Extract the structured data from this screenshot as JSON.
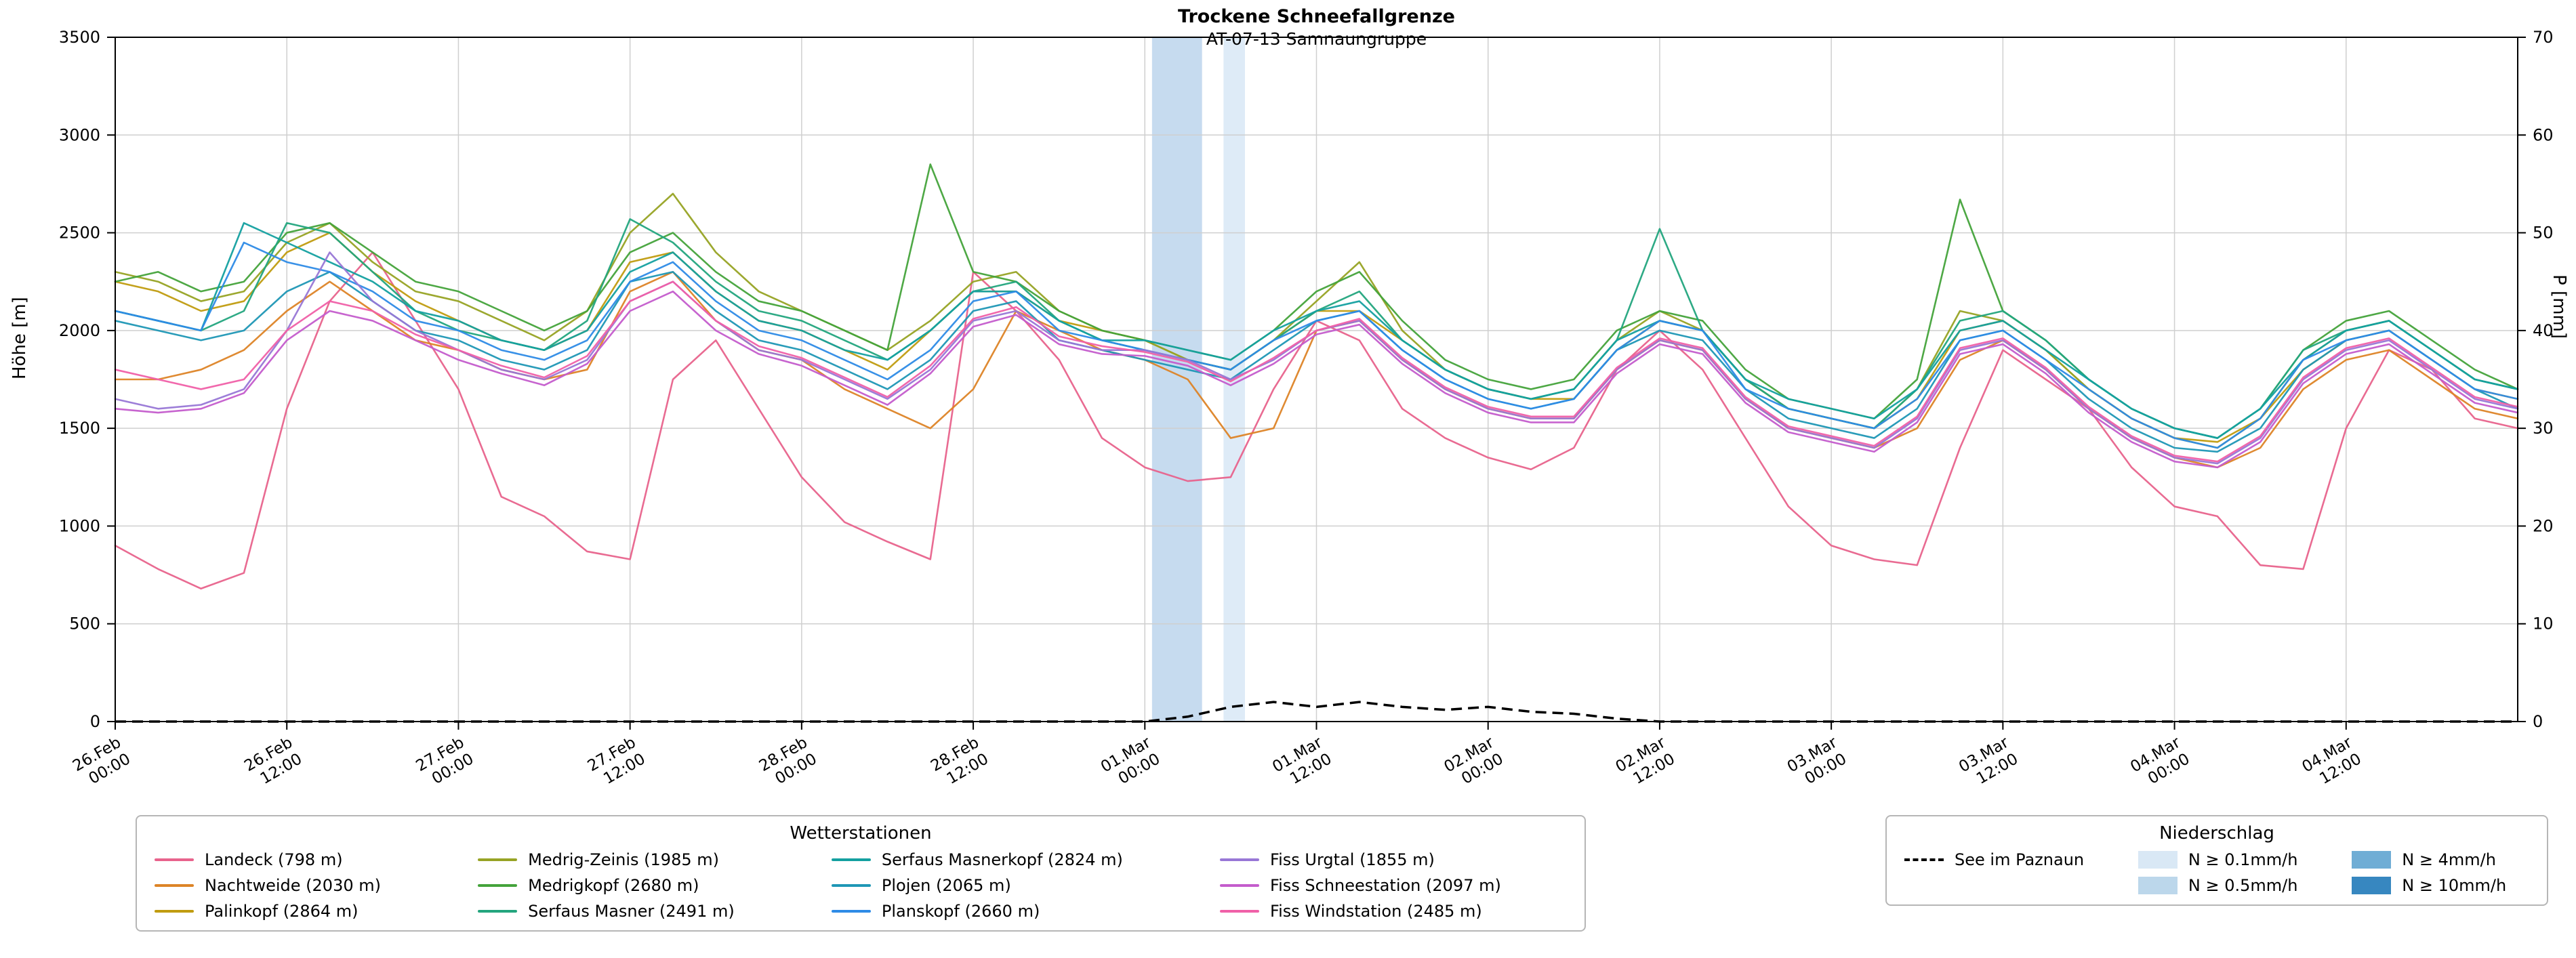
{
  "title": "Trockene Schneefallgrenze",
  "subtitle": "AT-07-13 Samnaungruppe",
  "axes": {
    "y_left_label": "Höhe [m]",
    "y_right_label": "P [mm]",
    "y_left_range": [
      0,
      3500
    ],
    "y_right_range": [
      0,
      70
    ],
    "y_left_ticks": [
      0,
      500,
      1000,
      1500,
      2000,
      2500,
      3000,
      3500
    ],
    "y_right_ticks": [
      0,
      10,
      20,
      30,
      40,
      50,
      60,
      70
    ],
    "x_range_hours": [
      0,
      168
    ],
    "x_ticks": [
      {
        "hour": 0,
        "line1": "26.Feb",
        "line2": "00:00"
      },
      {
        "hour": 12,
        "line1": "26.Feb",
        "line2": "12:00"
      },
      {
        "hour": 24,
        "line1": "27.Feb",
        "line2": "00:00"
      },
      {
        "hour": 36,
        "line1": "27.Feb",
        "line2": "12:00"
      },
      {
        "hour": 48,
        "line1": "28.Feb",
        "line2": "00:00"
      },
      {
        "hour": 60,
        "line1": "28.Feb",
        "line2": "12:00"
      },
      {
        "hour": 72,
        "line1": "01.Mar",
        "line2": "00:00"
      },
      {
        "hour": 84,
        "line1": "01.Mar",
        "line2": "12:00"
      },
      {
        "hour": 96,
        "line1": "02.Mar",
        "line2": "00:00"
      },
      {
        "hour": 108,
        "line1": "02.Mar",
        "line2": "12:00"
      },
      {
        "hour": 120,
        "line1": "03.Mar",
        "line2": "00:00"
      },
      {
        "hour": 132,
        "line1": "03.Mar",
        "line2": "12:00"
      },
      {
        "hour": 144,
        "line1": "04.Mar",
        "line2": "00:00"
      },
      {
        "hour": 156,
        "line1": "04.Mar",
        "line2": "12:00"
      }
    ]
  },
  "legend_stations": {
    "title": "Wetterstationen"
  },
  "legend_precip": {
    "title": "Niederschlag"
  },
  "chart_data": {
    "type": "line",
    "xlabel": "",
    "ylabel_left": "Höhe [m]",
    "ylabel_right": "P [mm]",
    "grid": true,
    "x_hours": [
      0,
      3,
      6,
      9,
      12,
      15,
      18,
      21,
      24,
      27,
      30,
      33,
      36,
      39,
      42,
      45,
      48,
      51,
      54,
      57,
      60,
      63,
      66,
      69,
      72,
      75,
      78,
      81,
      84,
      87,
      90,
      93,
      96,
      99,
      102,
      105,
      108,
      111,
      114,
      117,
      120,
      123,
      126,
      129,
      132,
      135,
      138,
      141,
      144,
      147,
      150,
      153,
      156,
      159,
      162,
      165,
      168
    ],
    "series": [
      {
        "name": "Landeck (798 m)",
        "color": "#e8638c",
        "values": [
          900,
          780,
          680,
          760,
          1600,
          2150,
          2400,
          2050,
          1700,
          1150,
          1050,
          870,
          830,
          1750,
          1950,
          1600,
          1250,
          1020,
          920,
          830,
          2300,
          2100,
          1850,
          1450,
          1300,
          1230,
          1250,
          1700,
          2050,
          1950,
          1600,
          1450,
          1350,
          1290,
          1400,
          1800,
          2000,
          1800,
          1450,
          1100,
          900,
          830,
          800,
          1400,
          1900,
          1750,
          1600,
          1300,
          1100,
          1050,
          800,
          780,
          1500,
          1900,
          1800,
          1550,
          1500
        ]
      },
      {
        "name": "Nachtweide (2030 m)",
        "color": "#dd8427",
        "values": [
          1750,
          1750,
          1800,
          1900,
          2100,
          2250,
          2100,
          1950,
          1900,
          1800,
          1750,
          1800,
          2200,
          2300,
          2050,
          1900,
          1850,
          1700,
          1600,
          1500,
          1700,
          2100,
          2000,
          1900,
          1850,
          1750,
          1450,
          1500,
          2000,
          2050,
          1850,
          1700,
          1600,
          1550,
          1550,
          1800,
          1950,
          1900,
          1650,
          1500,
          1450,
          1400,
          1500,
          1850,
          1950,
          1800,
          1600,
          1450,
          1350,
          1300,
          1400,
          1700,
          1850,
          1900,
          1750,
          1600,
          1550
        ]
      },
      {
        "name": "Palinkopf (2864 m)",
        "color": "#c09c10",
        "values": [
          2250,
          2200,
          2100,
          2150,
          2400,
          2500,
          2300,
          2150,
          2050,
          1950,
          1900,
          2000,
          2350,
          2400,
          2200,
          2050,
          2000,
          1900,
          1800,
          2000,
          2200,
          2200,
          2050,
          2000,
          1950,
          1850,
          1800,
          1950,
          2100,
          2100,
          1950,
          1800,
          1700,
          1650,
          1650,
          1900,
          2050,
          2000,
          1750,
          1600,
          1550,
          1500,
          1650,
          2000,
          2050,
          1900,
          1700,
          1550,
          1450,
          1430,
          1550,
          1800,
          1950,
          2000,
          1850,
          1700,
          1650
        ]
      },
      {
        "name": "Medrig-Zeinis (1985 m)",
        "color": "#97a324",
        "values": [
          2300,
          2250,
          2150,
          2200,
          2450,
          2550,
          2350,
          2200,
          2150,
          2050,
          1950,
          2100,
          2500,
          2700,
          2400,
          2200,
          2100,
          2000,
          1900,
          2050,
          2250,
          2300,
          2100,
          2000,
          1950,
          1850,
          1800,
          1950,
          2150,
          2350,
          2000,
          1800,
          1700,
          1650,
          1700,
          1950,
          2100,
          2000,
          1750,
          1600,
          1550,
          1500,
          1700,
          2100,
          2050,
          1900,
          1700,
          1550,
          1450,
          1400,
          1550,
          1850,
          2000,
          2050,
          1900,
          1750,
          1700
        ]
      },
      {
        "name": "Medrigkopf (2680 m)",
        "color": "#44a33b",
        "values": [
          2250,
          2300,
          2200,
          2250,
          2500,
          2550,
          2400,
          2250,
          2200,
          2100,
          2000,
          2100,
          2400,
          2500,
          2300,
          2150,
          2100,
          2000,
          1900,
          2850,
          2300,
          2250,
          2100,
          2000,
          1950,
          1900,
          1850,
          2000,
          2200,
          2300,
          2050,
          1850,
          1750,
          1700,
          1750,
          2000,
          2100,
          2050,
          1800,
          1650,
          1600,
          1550,
          1750,
          2670,
          2100,
          1950,
          1750,
          1600,
          1500,
          1450,
          1600,
          1900,
          2050,
          2100,
          1950,
          1800,
          1700
        ]
      },
      {
        "name": "Serfaus Masner (2491 m)",
        "color": "#23a57e",
        "values": [
          2100,
          2050,
          2000,
          2100,
          2550,
          2500,
          2300,
          2100,
          2000,
          1950,
          1900,
          2050,
          2570,
          2450,
          2250,
          2100,
          2050,
          1950,
          1850,
          2000,
          2200,
          2250,
          2050,
          1950,
          1900,
          1850,
          1800,
          1950,
          2100,
          2200,
          1950,
          1800,
          1700,
          1650,
          1700,
          1950,
          2520,
          2000,
          1750,
          1600,
          1550,
          1500,
          1700,
          2050,
          2100,
          1950,
          1750,
          1600,
          1500,
          1450,
          1600,
          1900,
          2000,
          2050,
          1900,
          1750,
          1700
        ]
      },
      {
        "name": "Serfaus Masnerkopf (2824 m)",
        "color": "#14a0a0",
        "values": [
          2100,
          2050,
          2000,
          2550,
          2450,
          2350,
          2250,
          2100,
          2050,
          1950,
          1900,
          2000,
          2300,
          2400,
          2200,
          2050,
          2000,
          1900,
          1850,
          2000,
          2200,
          2200,
          2050,
          1950,
          1950,
          1900,
          1850,
          2000,
          2100,
          2150,
          1950,
          1800,
          1700,
          1650,
          1700,
          1950,
          2050,
          2000,
          1750,
          1650,
          1600,
          1550,
          1700,
          2000,
          2050,
          1900,
          1750,
          1600,
          1500,
          1450,
          1600,
          1850,
          2000,
          2050,
          1900,
          1750,
          1700
        ]
      },
      {
        "name": "Plojen (2065 m)",
        "color": "#1f97b5",
        "values": [
          2050,
          2000,
          1950,
          2000,
          2200,
          2300,
          2150,
          2000,
          1950,
          1850,
          1800,
          1900,
          2250,
          2300,
          2100,
          1950,
          1900,
          1800,
          1700,
          1850,
          2100,
          2150,
          1950,
          1900,
          1850,
          1800,
          1750,
          1900,
          2050,
          2100,
          1900,
          1750,
          1650,
          1600,
          1650,
          1900,
          2000,
          1950,
          1700,
          1550,
          1500,
          1450,
          1600,
          1950,
          2000,
          1850,
          1650,
          1500,
          1400,
          1380,
          1500,
          1800,
          1950,
          2000,
          1850,
          1700,
          1600
        ]
      },
      {
        "name": "Planskopf (2660 m)",
        "color": "#2e8be6",
        "values": [
          2100,
          2050,
          2000,
          2450,
          2350,
          2300,
          2200,
          2050,
          2000,
          1900,
          1850,
          1950,
          2250,
          2350,
          2150,
          2000,
          1950,
          1850,
          1750,
          1900,
          2150,
          2200,
          2000,
          1950,
          1900,
          1850,
          1800,
          1950,
          2050,
          2100,
          1900,
          1750,
          1650,
          1600,
          1650,
          1900,
          2050,
          2000,
          1700,
          1600,
          1550,
          1500,
          1650,
          1950,
          2000,
          1850,
          1700,
          1550,
          1450,
          1400,
          1550,
          1850,
          1950,
          2000,
          1850,
          1700,
          1650
        ]
      },
      {
        "name": "Fiss Urgtal  (1855 m)",
        "color": "#9877d6",
        "values": [
          1650,
          1600,
          1620,
          1700,
          2000,
          2400,
          2150,
          2000,
          1900,
          1800,
          1750,
          1850,
          2150,
          2250,
          2050,
          1900,
          1850,
          1750,
          1650,
          1800,
          2050,
          2100,
          1950,
          1900,
          1900,
          1850,
          1750,
          1850,
          2000,
          2050,
          1850,
          1700,
          1600,
          1550,
          1550,
          1800,
          1950,
          1900,
          1650,
          1500,
          1450,
          1400,
          1550,
          1900,
          1950,
          1800,
          1600,
          1450,
          1350,
          1320,
          1450,
          1750,
          1900,
          1950,
          1800,
          1650,
          1600
        ]
      },
      {
        "name": "Fiss Schneestation (2097 m)",
        "color": "#c45ccc",
        "values": [
          1600,
          1580,
          1600,
          1680,
          1950,
          2100,
          2050,
          1950,
          1850,
          1780,
          1720,
          1830,
          2100,
          2200,
          2000,
          1880,
          1820,
          1720,
          1620,
          1780,
          2020,
          2080,
          1930,
          1880,
          1870,
          1820,
          1720,
          1830,
          1980,
          2030,
          1830,
          1680,
          1580,
          1530,
          1530,
          1780,
          1930,
          1880,
          1630,
          1480,
          1430,
          1380,
          1530,
          1880,
          1930,
          1780,
          1580,
          1430,
          1330,
          1300,
          1430,
          1730,
          1880,
          1930,
          1780,
          1630,
          1580
        ]
      },
      {
        "name": "Fiss Windstation (2485 m)",
        "color": "#f060a8",
        "values": [
          1800,
          1750,
          1700,
          1750,
          2000,
          2150,
          2100,
          1980,
          1900,
          1820,
          1760,
          1870,
          2150,
          2250,
          2050,
          1920,
          1860,
          1760,
          1660,
          1820,
          2060,
          2120,
          1970,
          1920,
          1890,
          1840,
          1740,
          1860,
          2000,
          2060,
          1860,
          1710,
          1610,
          1560,
          1560,
          1810,
          1960,
          1910,
          1660,
          1510,
          1460,
          1410,
          1560,
          1910,
          1960,
          1810,
          1610,
          1460,
          1360,
          1330,
          1460,
          1760,
          1910,
          1960,
          1810,
          1660,
          1610
        ]
      }
    ],
    "dashed_series": {
      "name": "See im Paznaun",
      "color": "#000000",
      "axis": "right",
      "values": [
        0,
        0,
        0,
        0,
        0,
        0,
        0,
        0,
        0,
        0,
        0,
        0,
        0,
        0,
        0,
        0,
        0,
        0,
        0,
        0,
        0,
        0,
        0,
        0,
        0,
        0.5,
        1.5,
        2,
        1.5,
        2,
        1.5,
        1.2,
        1.5,
        1,
        0.8,
        0.3,
        0,
        0,
        0,
        0,
        0,
        0,
        0,
        0,
        0,
        0,
        0,
        0,
        0,
        0,
        0,
        0,
        0,
        0,
        0,
        0,
        0
      ]
    },
    "precip_bands": [
      {
        "start_hour": 72.5,
        "end_hour": 76,
        "level": "N ≥ 0.5mm/h",
        "color": "#c6dbef"
      },
      {
        "start_hour": 77.5,
        "end_hour": 79,
        "level": "N ≥ 0.1mm/h",
        "color": "#deebf7"
      }
    ],
    "precip_levels": [
      {
        "label": "N ≥ 0.1mm/h",
        "color": "#d9e8f5"
      },
      {
        "label": "N ≥ 0.5mm/h",
        "color": "#bcd7eb"
      },
      {
        "label": "N ≥ 4mm/h",
        "color": "#6fadd5"
      },
      {
        "label": "N ≥ 10mm/h",
        "color": "#3787c0"
      }
    ]
  }
}
